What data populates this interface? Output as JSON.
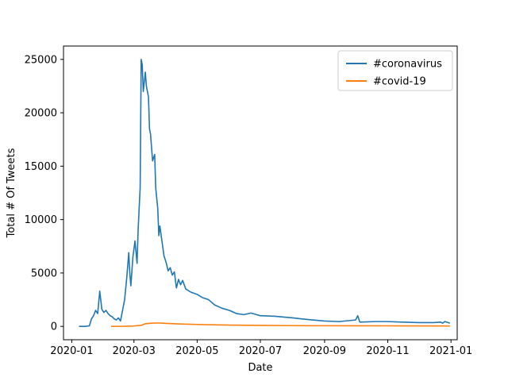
{
  "chart_data": {
    "type": "line",
    "title": "",
    "xlabel": "Date",
    "ylabel": "Total # Of Tweets",
    "x_ticks": [
      "2020-01",
      "2020-03",
      "2020-05",
      "2020-07",
      "2020-09",
      "2020-11",
      "2021-01"
    ],
    "y_ticks": [
      "0",
      "5000",
      "10000",
      "15000",
      "20000",
      "25000"
    ],
    "xlim": [
      "2019-12-24",
      "2021-01-07"
    ],
    "ylim": [
      -1250,
      26250
    ],
    "grid": false,
    "legend_position": "top-right",
    "series": [
      {
        "name": "#coronavirus",
        "color": "#1f77b4",
        "points": [
          [
            "2020-01-08",
            0
          ],
          [
            "2020-01-14",
            0
          ],
          [
            "2020-01-18",
            50
          ],
          [
            "2020-01-20",
            700
          ],
          [
            "2020-01-22",
            1000
          ],
          [
            "2020-01-24",
            1500
          ],
          [
            "2020-01-26",
            1200
          ],
          [
            "2020-01-28",
            3300
          ],
          [
            "2020-01-30",
            1600
          ],
          [
            "2020-02-01",
            1300
          ],
          [
            "2020-02-03",
            1500
          ],
          [
            "2020-02-05",
            1200
          ],
          [
            "2020-02-07",
            1000
          ],
          [
            "2020-02-09",
            900
          ],
          [
            "2020-02-11",
            700
          ],
          [
            "2020-02-13",
            600
          ],
          [
            "2020-02-15",
            800
          ],
          [
            "2020-02-17",
            500
          ],
          [
            "2020-02-19",
            1500
          ],
          [
            "2020-02-21",
            2500
          ],
          [
            "2020-02-23",
            4500
          ],
          [
            "2020-02-25",
            6900
          ],
          [
            "2020-02-26",
            5000
          ],
          [
            "2020-02-27",
            3800
          ],
          [
            "2020-02-29",
            6500
          ],
          [
            "2020-03-02",
            8000
          ],
          [
            "2020-03-04",
            5900
          ],
          [
            "2020-03-05",
            9000
          ],
          [
            "2020-03-07",
            13000
          ],
          [
            "2020-03-08",
            25000
          ],
          [
            "2020-03-09",
            24500
          ],
          [
            "2020-03-10",
            22000
          ],
          [
            "2020-03-12",
            23800
          ],
          [
            "2020-03-13",
            22500
          ],
          [
            "2020-03-15",
            21500
          ],
          [
            "2020-03-16",
            18500
          ],
          [
            "2020-03-17",
            18000
          ],
          [
            "2020-03-19",
            15500
          ],
          [
            "2020-03-21",
            16100
          ],
          [
            "2020-03-22",
            13000
          ],
          [
            "2020-03-24",
            11000
          ],
          [
            "2020-03-25",
            8500
          ],
          [
            "2020-03-26",
            9400
          ],
          [
            "2020-03-28",
            8000
          ],
          [
            "2020-03-30",
            6600
          ],
          [
            "2020-04-01",
            6000
          ],
          [
            "2020-04-03",
            5200
          ],
          [
            "2020-04-05",
            5500
          ],
          [
            "2020-04-07",
            4800
          ],
          [
            "2020-04-09",
            5100
          ],
          [
            "2020-04-11",
            3600
          ],
          [
            "2020-04-13",
            4400
          ],
          [
            "2020-04-15",
            3900
          ],
          [
            "2020-04-17",
            4300
          ],
          [
            "2020-04-20",
            3500
          ],
          [
            "2020-04-25",
            3200
          ],
          [
            "2020-05-01",
            3000
          ],
          [
            "2020-05-06",
            2700
          ],
          [
            "2020-05-12",
            2500
          ],
          [
            "2020-05-18",
            2000
          ],
          [
            "2020-05-25",
            1700
          ],
          [
            "2020-06-01",
            1500
          ],
          [
            "2020-06-08",
            1200
          ],
          [
            "2020-06-15",
            1100
          ],
          [
            "2020-06-22",
            1250
          ],
          [
            "2020-07-01",
            1000
          ],
          [
            "2020-07-15",
            950
          ],
          [
            "2020-08-01",
            800
          ],
          [
            "2020-08-15",
            650
          ],
          [
            "2020-09-01",
            500
          ],
          [
            "2020-09-15",
            450
          ],
          [
            "2020-10-01",
            600
          ],
          [
            "2020-10-03",
            1000
          ],
          [
            "2020-10-05",
            400
          ],
          [
            "2020-10-20",
            450
          ],
          [
            "2020-11-01",
            450
          ],
          [
            "2020-11-15",
            400
          ],
          [
            "2020-12-01",
            350
          ],
          [
            "2020-12-15",
            350
          ],
          [
            "2020-12-22",
            400
          ],
          [
            "2020-12-24",
            300
          ],
          [
            "2020-12-26",
            450
          ],
          [
            "2020-12-31",
            300
          ]
        ]
      },
      {
        "name": "#covid-19",
        "color": "#ff7f0e",
        "points": [
          [
            "2020-02-08",
            0
          ],
          [
            "2020-02-20",
            10
          ],
          [
            "2020-03-01",
            40
          ],
          [
            "2020-03-08",
            100
          ],
          [
            "2020-03-12",
            250
          ],
          [
            "2020-03-18",
            300
          ],
          [
            "2020-03-24",
            320
          ],
          [
            "2020-04-01",
            280
          ],
          [
            "2020-04-15",
            220
          ],
          [
            "2020-05-01",
            180
          ],
          [
            "2020-05-15",
            150
          ],
          [
            "2020-06-01",
            120
          ],
          [
            "2020-07-01",
            90
          ],
          [
            "2020-08-01",
            70
          ],
          [
            "2020-09-01",
            60
          ],
          [
            "2020-10-01",
            55
          ],
          [
            "2020-11-01",
            50
          ],
          [
            "2020-12-01",
            45
          ],
          [
            "2020-12-31",
            40
          ]
        ]
      }
    ]
  }
}
